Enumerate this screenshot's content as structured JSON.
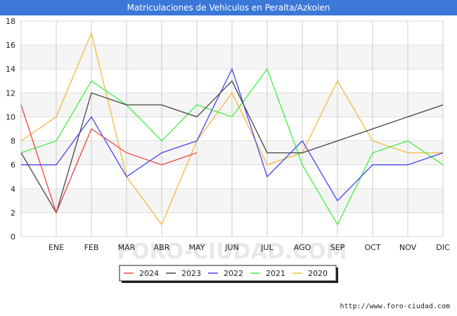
{
  "chart_data": {
    "type": "line",
    "title": "Matriculaciones de Vehiculos en Peralta/Azkoien",
    "categories": [
      "",
      "ENE",
      "FEB",
      "MAR",
      "ABR",
      "MAY",
      "JUN",
      "JUL",
      "AGO",
      "SEP",
      "OCT",
      "NOV",
      "DIC"
    ],
    "ylim": [
      0,
      18
    ],
    "yticks": [
      0,
      2,
      4,
      6,
      8,
      10,
      12,
      14,
      16,
      18
    ],
    "grid": true,
    "legend_position": "bottom",
    "series": [
      {
        "name": "2024",
        "color": "#ee4444",
        "values": [
          11,
          2,
          9,
          7,
          6,
          7,
          null,
          null,
          null,
          null,
          null,
          null,
          null
        ]
      },
      {
        "name": "2023",
        "color": "#444444",
        "values": [
          7,
          2,
          12,
          11,
          11,
          10,
          13,
          7,
          7,
          8,
          9,
          10,
          11
        ]
      },
      {
        "name": "2022",
        "color": "#4444ee",
        "values": [
          6,
          6,
          10,
          5,
          7,
          8,
          14,
          5,
          8,
          3,
          6,
          6,
          7
        ]
      },
      {
        "name": "2021",
        "color": "#44ee44",
        "values": [
          7,
          8,
          13,
          11,
          8,
          11,
          10,
          14,
          6,
          1,
          7,
          8,
          6
        ]
      },
      {
        "name": "2020",
        "color": "#f5b942",
        "values": [
          8,
          10,
          17,
          5,
          1,
          8,
          12,
          6,
          7,
          13,
          8,
          7,
          7
        ]
      }
    ],
    "watermark": "FORO-CIUDAD.COM"
  },
  "footer": {
    "url": "http://www.foro-ciudad.com"
  }
}
